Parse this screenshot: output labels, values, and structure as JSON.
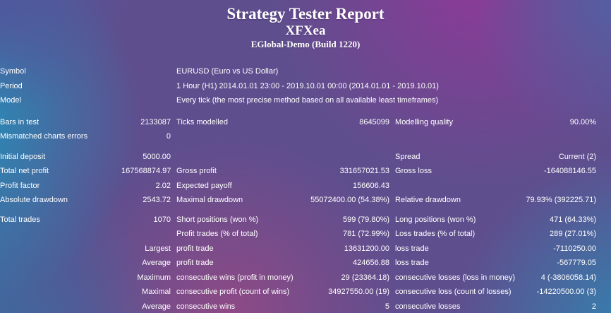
{
  "header": {
    "title": "Strategy Tester Report",
    "expert_name": "XFXea",
    "server": "EGlobal-Demo (Build 1220)"
  },
  "background_palette": {
    "base_purple": "#5f4e8e",
    "teal_left": "#2095bd",
    "magenta_top": "#8d3a96",
    "blue_violet_top_left": "#4f589d",
    "blue_violet_top_right": "#5360a2",
    "steel_blue_bottom_left": "#3a6da1",
    "teal_bottom_right": "#2f86b2",
    "pink_bottom": "#8d4a86",
    "text": "#ffffff"
  },
  "report": {
    "rows": [
      {
        "type": "wide",
        "cells": [
          "Symbol",
          "EURUSD (Euro vs US Dollar)"
        ]
      },
      {
        "type": "wide",
        "cells": [
          "Period",
          "1 Hour (H1) 2014.01.01 23:00 - 2019.10.01 00:00 (2014.01.01 - 2019.10.01)"
        ]
      },
      {
        "type": "wide",
        "cells": [
          "Model",
          "Every tick (the most precise method based on all available least timeframes)"
        ]
      },
      {
        "type": "spacer"
      },
      {
        "type": "normal",
        "cells": [
          "Bars in test",
          "2133087",
          "Ticks modelled",
          "8645099",
          "Modelling quality",
          "90.00%"
        ]
      },
      {
        "type": "normal",
        "cells": [
          "Mismatched charts errors",
          "0",
          "",
          "",
          "",
          ""
        ]
      },
      {
        "type": "spacer"
      },
      {
        "type": "normal",
        "cells": [
          "Initial deposit",
          "5000.00",
          "",
          "",
          "Spread",
          "Current (2)"
        ]
      },
      {
        "type": "normal",
        "cells": [
          "Total net profit",
          "167568874.97",
          "Gross profit",
          "331657021.53",
          "Gross loss",
          "-164088146.55"
        ]
      },
      {
        "type": "normal",
        "cells": [
          "Profit factor",
          "2.02",
          "Expected payoff",
          "156606.43",
          "",
          ""
        ]
      },
      {
        "type": "normal",
        "cells": [
          "Absolute drawdown",
          "2543.72",
          "Maximal drawdown",
          "55072400.00 (54.38%)",
          "Relative drawdown",
          "79.93% (392225.71)"
        ]
      },
      {
        "type": "spacer"
      },
      {
        "type": "normal",
        "cells": [
          "Total trades",
          "1070",
          "Short positions (won %)",
          "599 (79.80%)",
          "Long positions (won %)",
          "471 (64.33%)"
        ]
      },
      {
        "type": "normal",
        "cells": [
          "",
          "",
          "Profit trades (% of total)",
          "781 (72.99%)",
          "Loss trades (% of total)",
          "289 (27.01%)"
        ]
      },
      {
        "type": "normal",
        "cells": [
          "",
          "Largest",
          "profit trade",
          "13631200.00",
          "loss trade",
          "-7110250.00"
        ]
      },
      {
        "type": "normal",
        "cells": [
          "",
          "Average",
          "profit trade",
          "424656.88",
          "loss trade",
          "-567779.05"
        ]
      },
      {
        "type": "normal",
        "cells": [
          "",
          "Maximum",
          "consecutive wins (profit in money)",
          "29 (23364.18)",
          "consecutive losses (loss in money)",
          "4 (-3806058.14)"
        ]
      },
      {
        "type": "normal",
        "cells": [
          "",
          "Maximal",
          "consecutive profit (count of wins)",
          "34927550.00 (19)",
          "consecutive loss (count of losses)",
          "-14220500.00 (3)"
        ]
      },
      {
        "type": "normal",
        "cells": [
          "",
          "Average",
          "consecutive wins",
          "5",
          "consecutive losses",
          "2"
        ]
      }
    ]
  }
}
